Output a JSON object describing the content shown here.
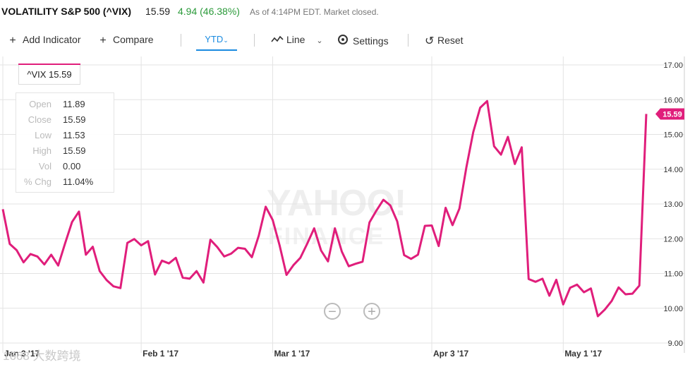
{
  "quote": {
    "symbol_name": "VOLATILITY S&P 500 (^VIX)",
    "price": "15.59",
    "change": "4.94 (46.38%)",
    "as_of": "As of 4:14PM EDT. Market closed.",
    "change_color": "#2b9a3a"
  },
  "toolbar": {
    "add_indicator": "Add Indicator",
    "compare": "Compare",
    "range": "YTD",
    "range_caret": "⌄",
    "chart_type": "Line",
    "chart_type_caret": "⌄",
    "settings": "Settings",
    "reset": "Reset",
    "accent_color": "#1b8be0",
    "icons": [
      "plus-icon",
      "plus-icon",
      "line-chart-icon",
      "chevron-down-icon",
      "gear-icon",
      "reset-icon"
    ]
  },
  "series_label": "^VIX 15.59",
  "ohlc": [
    {
      "key": "Open",
      "value": "11.89"
    },
    {
      "key": "Close",
      "value": "15.59"
    },
    {
      "key": "Low",
      "value": "11.53"
    },
    {
      "key": "High",
      "value": "15.59"
    },
    {
      "key": "Vol",
      "value": "0.00"
    },
    {
      "key": "% Chg",
      "value": "11.04%"
    }
  ],
  "watermark": {
    "line1": "YAHOO!",
    "line2": "FINANCE"
  },
  "corner_watermark": "1668 大数跨境",
  "zoom": {
    "out": "−",
    "in": "+"
  },
  "chart_data": {
    "type": "line",
    "series": [
      {
        "name": "^VIX",
        "color": "#e01e7b",
        "x": [
          "2017-01-03",
          "2017-01-04",
          "2017-01-05",
          "2017-01-06",
          "2017-01-09",
          "2017-01-10",
          "2017-01-11",
          "2017-01-12",
          "2017-01-13",
          "2017-01-17",
          "2017-01-18",
          "2017-01-19",
          "2017-01-20",
          "2017-01-23",
          "2017-01-24",
          "2017-01-25",
          "2017-01-26",
          "2017-01-27",
          "2017-01-30",
          "2017-01-31",
          "2017-02-01",
          "2017-02-02",
          "2017-02-03",
          "2017-02-06",
          "2017-02-07",
          "2017-02-08",
          "2017-02-09",
          "2017-02-10",
          "2017-02-13",
          "2017-02-14",
          "2017-02-15",
          "2017-02-16",
          "2017-02-17",
          "2017-02-21",
          "2017-02-22",
          "2017-02-23",
          "2017-02-24",
          "2017-02-27",
          "2017-02-28",
          "2017-03-01",
          "2017-03-02",
          "2017-03-03",
          "2017-03-06",
          "2017-03-07",
          "2017-03-08",
          "2017-03-09",
          "2017-03-10",
          "2017-03-13",
          "2017-03-14",
          "2017-03-15",
          "2017-03-16",
          "2017-03-17",
          "2017-03-20",
          "2017-03-21",
          "2017-03-22",
          "2017-03-23",
          "2017-03-24",
          "2017-03-27",
          "2017-03-28",
          "2017-03-29",
          "2017-03-30",
          "2017-03-31",
          "2017-04-03",
          "2017-04-04",
          "2017-04-05",
          "2017-04-06",
          "2017-04-07",
          "2017-04-10",
          "2017-04-11",
          "2017-04-12",
          "2017-04-13",
          "2017-04-17",
          "2017-04-18",
          "2017-04-19",
          "2017-04-20",
          "2017-04-21",
          "2017-04-24",
          "2017-04-25",
          "2017-04-26",
          "2017-04-27",
          "2017-04-28",
          "2017-05-01",
          "2017-05-02",
          "2017-05-03",
          "2017-05-04",
          "2017-05-05",
          "2017-05-08",
          "2017-05-09",
          "2017-05-10",
          "2017-05-11",
          "2017-05-12",
          "2017-05-15",
          "2017-05-16",
          "2017-05-17"
        ],
        "values": [
          12.85,
          11.85,
          11.67,
          11.32,
          11.56,
          11.49,
          11.26,
          11.54,
          11.23,
          11.87,
          12.48,
          12.78,
          11.54,
          11.77,
          11.07,
          10.81,
          10.63,
          10.58,
          11.88,
          11.99,
          11.81,
          11.93,
          10.97,
          11.37,
          11.29,
          11.45,
          10.88,
          10.85,
          11.07,
          10.74,
          11.97,
          11.76,
          11.49,
          11.57,
          11.74,
          11.71,
          11.47,
          12.09,
          12.92,
          12.54,
          11.81,
          10.96,
          11.24,
          11.45,
          11.86,
          12.3,
          11.66,
          11.35,
          12.3,
          11.63,
          11.21,
          11.28,
          11.34,
          12.47,
          12.81,
          13.12,
          12.96,
          12.5,
          11.53,
          11.42,
          11.54,
          12.37,
          12.38,
          11.79,
          12.89,
          12.39,
          12.87,
          14.05,
          15.07,
          15.77,
          15.96,
          14.66,
          14.42,
          14.93,
          14.15,
          14.63,
          10.84,
          10.76,
          10.85,
          10.36,
          10.82,
          10.11,
          10.59,
          10.68,
          10.46,
          10.57,
          9.77,
          9.96,
          10.21,
          10.6,
          10.4,
          10.42,
          10.65,
          15.59
        ]
      }
    ],
    "x_tick_labels": [
      "Jan 3 '17",
      "Feb 1 '17",
      "Mar 1 '17",
      "Apr 3 '17",
      "May 1 '17"
    ],
    "x_tick_dates": [
      "2017-01-03",
      "2017-02-01",
      "2017-03-01",
      "2017-04-03",
      "2017-05-01"
    ],
    "y_ticks": [
      "9.00",
      "10.00",
      "11.00",
      "12.00",
      "13.00",
      "14.00",
      "15.00",
      "16.00",
      "17.00"
    ],
    "ylim": [
      9,
      17
    ],
    "last_value_label": "15.59",
    "grid": true,
    "y_axis_side": "right"
  }
}
